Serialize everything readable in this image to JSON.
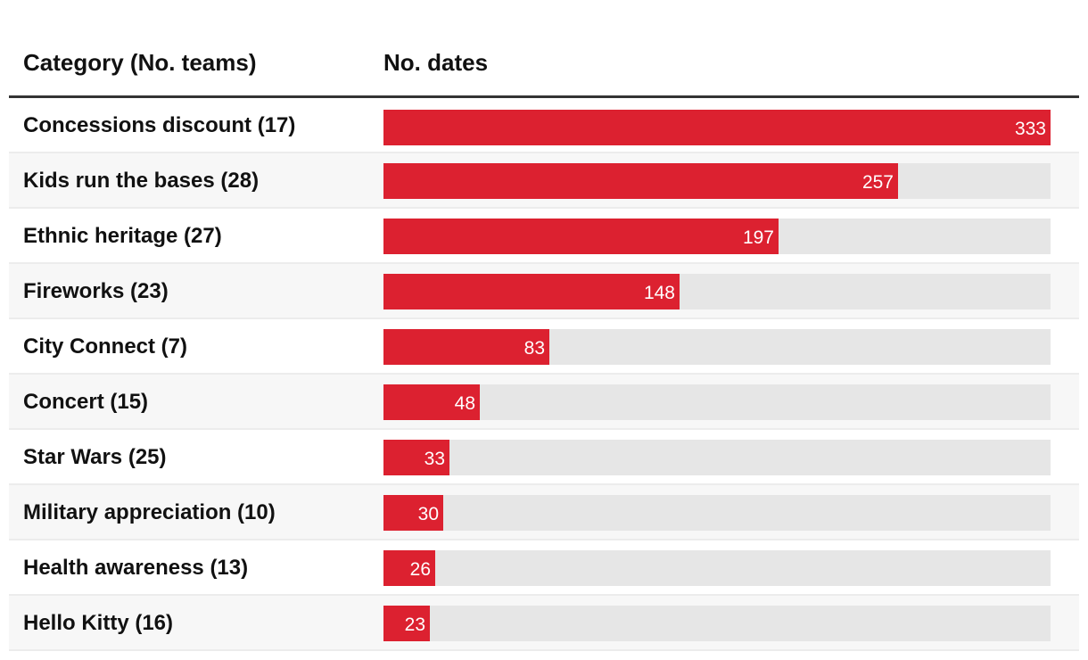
{
  "chart_data": {
    "type": "bar",
    "orientation": "horizontal",
    "columns": {
      "category": "Category (No. teams)",
      "value": "No. dates"
    },
    "categories": [
      "Concessions discount (17)",
      "Kids run the bases (28)",
      "Ethnic heritage (27)",
      "Fireworks (23)",
      "City Connect (7)",
      "Concert (15)",
      "Star Wars (25)",
      "Military appreciation (10)",
      "Health awareness (13)",
      "Hello Kitty (16)"
    ],
    "values": [
      333,
      257,
      197,
      148,
      83,
      48,
      33,
      30,
      26,
      23
    ],
    "xlim": [
      0,
      333
    ],
    "colors": {
      "bar": "#dc2130",
      "track": "#e6e6e6",
      "value_label": "#ffffff"
    }
  }
}
